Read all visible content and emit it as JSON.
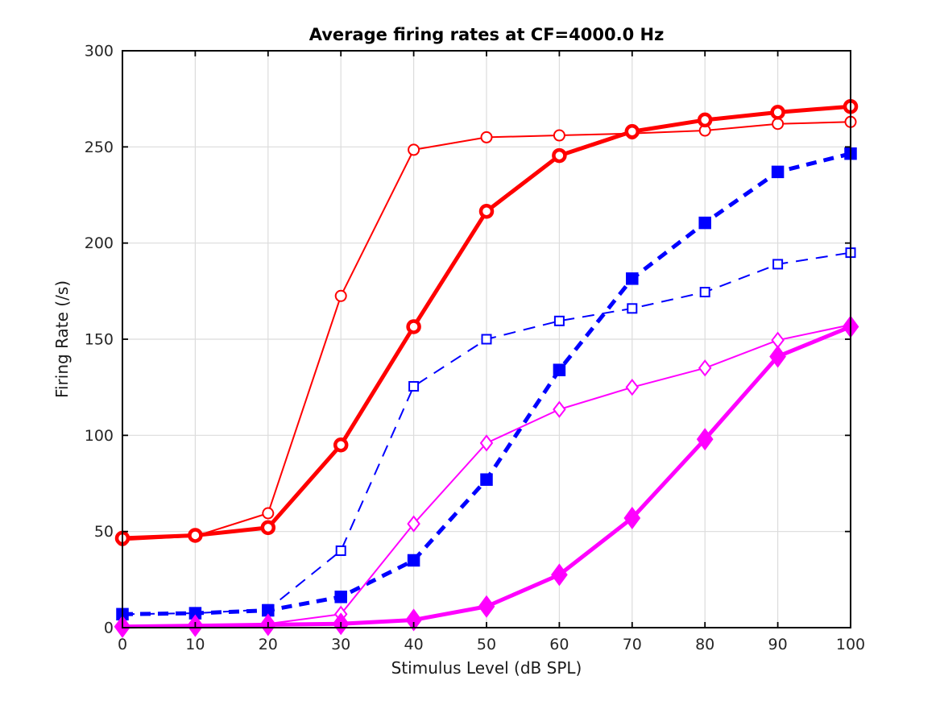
{
  "chart_data": {
    "type": "line",
    "title": "Average firing rates at CF=4000.0 Hz",
    "xlabel": "Stimulus Level (dB SPL)",
    "ylabel": "Firing Rate (/s)",
    "xlim": [
      0,
      100
    ],
    "ylim": [
      0,
      300
    ],
    "xticks": [
      0,
      10,
      20,
      30,
      40,
      50,
      60,
      70,
      80,
      90,
      100
    ],
    "yticks": [
      0,
      50,
      100,
      150,
      200,
      250,
      300
    ],
    "grid": true,
    "legend": "none",
    "tick_direction": "in",
    "box": true,
    "x": [
      0,
      10,
      20,
      30,
      40,
      50,
      60,
      70,
      80,
      90,
      100
    ],
    "series": [
      {
        "name": "red-thin-open-circle",
        "color": "#FF0000",
        "linewidth": 2,
        "linestyle": "solid",
        "marker": "circle",
        "marker_filled": false,
        "values": [
          45.5,
          47.5,
          59.5,
          172.5,
          248.5,
          255,
          256,
          257,
          258.5,
          262,
          263
        ]
      },
      {
        "name": "red-thick-open-circle",
        "color": "#FF0000",
        "linewidth": 5,
        "linestyle": "solid",
        "marker": "circle",
        "marker_filled": false,
        "values": [
          46.5,
          48,
          52,
          95,
          156.5,
          216.5,
          245.5,
          258,
          264,
          268,
          271
        ]
      },
      {
        "name": "blue-thin-dashed-open-square",
        "color": "#0000FF",
        "linewidth": 2,
        "linestyle": "dashed",
        "marker": "square",
        "marker_filled": false,
        "values": [
          7,
          7.5,
          9.5,
          40,
          125.5,
          150,
          159.5,
          166,
          174.5,
          189,
          195
        ]
      },
      {
        "name": "blue-thick-dashed-filled-square",
        "color": "#0000FF",
        "linewidth": 5,
        "linestyle": "dashed",
        "marker": "square",
        "marker_filled": true,
        "values": [
          7,
          7.5,
          9,
          16,
          35,
          77,
          134,
          181.5,
          210.5,
          237,
          246.5
        ]
      },
      {
        "name": "magenta-thin-open-diamond",
        "color": "#FF00FF",
        "linewidth": 2,
        "linestyle": "solid",
        "marker": "diamond",
        "marker_filled": false,
        "values": [
          1,
          1,
          2,
          7,
          54,
          96,
          113.5,
          125,
          135,
          149.5,
          157.5
        ]
      },
      {
        "name": "magenta-thick-filled-diamond",
        "color": "#FF00FF",
        "linewidth": 5,
        "linestyle": "solid",
        "marker": "diamond",
        "marker_filled": true,
        "values": [
          0.5,
          1,
          1.5,
          2,
          4,
          11,
          27.5,
          57,
          98,
          141,
          156.5
        ]
      }
    ],
    "colors": {
      "background": "#FFFFFF",
      "grid": "#DCDCDC",
      "spine": "#000000",
      "tick_label": "#262626"
    }
  }
}
